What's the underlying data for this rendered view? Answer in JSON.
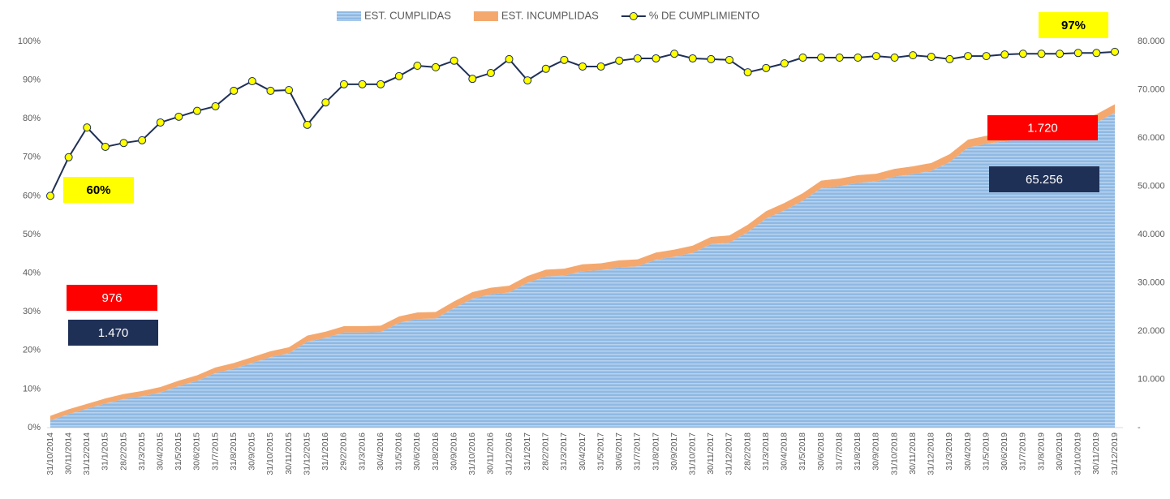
{
  "chart_data": {
    "type": "combo",
    "categories": [
      "31/10/2014",
      "30/11/2014",
      "31/12/2014",
      "31/1/2015",
      "28/2/2015",
      "31/3/2015",
      "30/4/2015",
      "31/5/2015",
      "30/6/2015",
      "31/7/2015",
      "31/8/2015",
      "30/9/2015",
      "31/10/2015",
      "30/11/2015",
      "31/12/2015",
      "31/1/2016",
      "29/2/2016",
      "31/3/2016",
      "30/4/2016",
      "31/5/2016",
      "30/6/2016",
      "31/8/2016",
      "30/9/2016",
      "31/10/2016",
      "30/11/2016",
      "31/12/2016",
      "31/1/2017",
      "28/2/2017",
      "31/3/2017",
      "30/4/2017",
      "31/5/2017",
      "30/6/2017",
      "31/7/2017",
      "31/8/2017",
      "30/9/2017",
      "31/10/2017",
      "30/11/2017",
      "31/12/2017",
      "28/2/2018",
      "31/3/2018",
      "30/4/2018",
      "31/5/2018",
      "30/6/2018",
      "31/7/2018",
      "31/8/2018",
      "30/9/2018",
      "31/10/2018",
      "30/11/2018",
      "31/12/2018",
      "31/3/2019",
      "30/4/2019",
      "31/5/2019",
      "30/6/2019",
      "31/7/2019",
      "31/8/2019",
      "30/9/2019",
      "31/10/2019",
      "30/11/2019",
      "31/12/2019"
    ],
    "series": [
      {
        "name": "EST. CUMPLIDAS",
        "color": "#8fb9e3",
        "axis": "y2",
        "kind": "stacked-area",
        "values": [
          1470,
          2800,
          3900,
          5000,
          5900,
          6500,
          7300,
          8600,
          9700,
          11300,
          12200,
          13400,
          14600,
          15400,
          17800,
          18600,
          19700,
          19700,
          19800,
          21700,
          22500,
          22600,
          24800,
          26700,
          27600,
          28000,
          30000,
          31300,
          31500,
          32400,
          32600,
          33200,
          33400,
          34800,
          35400,
          36200,
          38000,
          38300,
          40500,
          43300,
          45000,
          47000,
          49600,
          50000,
          50700,
          51000,
          52000,
          52500,
          53200,
          55000,
          58000,
          58800,
          59300,
          59800,
          60500,
          61200,
          62000,
          63200,
          65256
        ]
      },
      {
        "name": "EST. INCUMPLIDAS",
        "color": "#f4a86e",
        "axis": "y2",
        "kind": "stacked-area",
        "values": [
          976,
          1000,
          1020,
          1040,
          1060,
          1080,
          1100,
          1120,
          1140,
          1160,
          1180,
          1200,
          1220,
          1240,
          1260,
          1280,
          1300,
          1310,
          1320,
          1330,
          1340,
          1350,
          1360,
          1370,
          1380,
          1390,
          1400,
          1410,
          1420,
          1430,
          1440,
          1450,
          1460,
          1470,
          1480,
          1490,
          1500,
          1510,
          1520,
          1530,
          1540,
          1550,
          1560,
          1570,
          1580,
          1590,
          1600,
          1610,
          1620,
          1630,
          1640,
          1650,
          1660,
          1670,
          1680,
          1690,
          1700,
          1710,
          1720
        ]
      },
      {
        "name": "% DE CUMPLIMIENTO",
        "color": "#1f3056",
        "marker_color": "#ffff00",
        "kind": "line",
        "values": [
          60,
          70,
          77.7,
          72.7,
          73.7,
          74.4,
          79,
          80.5,
          82,
          83.2,
          87.2,
          89.7,
          87.2,
          87.4,
          78.4,
          84.2,
          88.9,
          88.9,
          88.9,
          91,
          93.7,
          93.3,
          95,
          90.3,
          91.8,
          95.4,
          89.9,
          92.9,
          95.2,
          93.5,
          93.5,
          95,
          95.6,
          95.6,
          96.8,
          95.6,
          95.4,
          95.2,
          92,
          93.1,
          94.3,
          95.8,
          95.8,
          95.8,
          95.8,
          96.2,
          95.8,
          96.4,
          96,
          95.4,
          96.2,
          96.2,
          96.6,
          96.8,
          96.8,
          96.8,
          97,
          97,
          97.3
        ]
      }
    ],
    "ylim": [
      0,
      100
    ],
    "yticks": [
      {
        "value": 0,
        "label": "0%"
      },
      {
        "value": 10,
        "label": "10%"
      },
      {
        "value": 20,
        "label": "20%"
      },
      {
        "value": 30,
        "label": "30%"
      },
      {
        "value": 40,
        "label": "40%"
      },
      {
        "value": 50,
        "label": "50%"
      },
      {
        "value": 60,
        "label": "60%"
      },
      {
        "value": 70,
        "label": "70%"
      },
      {
        "value": 80,
        "label": "80%"
      },
      {
        "value": 90,
        "label": "90%"
      },
      {
        "value": 100,
        "label": "100%"
      }
    ],
    "y2lim": [
      0,
      80000
    ],
    "y2ticks": [
      {
        "value": 0,
        "label": "-"
      },
      {
        "value": 10000,
        "label": "10.000"
      },
      {
        "value": 20000,
        "label": "20.000"
      },
      {
        "value": 30000,
        "label": "30.000"
      },
      {
        "value": 40000,
        "label": "40.000"
      },
      {
        "value": 50000,
        "label": "50.000"
      },
      {
        "value": 60000,
        "label": "60.000"
      },
      {
        "value": 70000,
        "label": "70.000"
      },
      {
        "value": 80000,
        "label": "80.000"
      }
    ],
    "legend": "top",
    "annotations": [
      {
        "text": "60%",
        "fill": "#ffff00",
        "color": "#000000"
      },
      {
        "text": "97%",
        "fill": "#ffff00",
        "color": "#000000"
      },
      {
        "text": "976",
        "fill": "#ff0000",
        "color": "#ffffff"
      },
      {
        "text": "1.470",
        "fill": "#1f3056",
        "color": "#ffffff"
      },
      {
        "text": "1.720",
        "fill": "#ff0000",
        "color": "#ffffff"
      },
      {
        "text": "65.256",
        "fill": "#1f3056",
        "color": "#ffffff"
      }
    ]
  }
}
